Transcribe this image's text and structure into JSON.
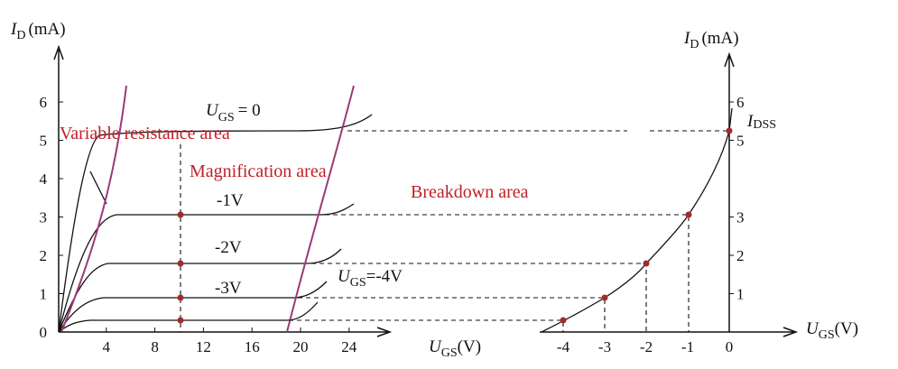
{
  "output_chart": {
    "y_label": {
      "symbol": "I",
      "sub": "D",
      "unit": "(mA)"
    },
    "x_label": {
      "symbol": "U",
      "sub": "GS",
      "unit": "(V)"
    },
    "x_ticks": [
      4,
      8,
      12,
      16,
      20,
      24
    ],
    "y_ticks": [
      0,
      1,
      2,
      3,
      4,
      5,
      6
    ],
    "curve_labels": {
      "top": {
        "symbol": "U",
        "sub": "GS",
        "rest": "= 0"
      },
      "minus1": "-1V",
      "minus2": "-2V",
      "minus3": "-3V",
      "minus4": {
        "symbol": "U",
        "sub": "GS",
        "rest": "=-4V"
      }
    },
    "regions": [
      "Variable resistance area",
      "Magnification area",
      "Breakdown area"
    ]
  },
  "transfer_chart": {
    "y_label": {
      "symbol": "I",
      "sub": "D",
      "unit": "(mA)"
    },
    "x_label": {
      "symbol": "U",
      "sub": "GS",
      "unit": "(V)"
    },
    "x_ticks": [
      -4,
      -3,
      -2,
      -1,
      0
    ],
    "y_ticks": [
      1,
      2,
      3,
      5,
      6
    ],
    "idss": {
      "symbol": "I",
      "sub": "DSS"
    }
  }
}
